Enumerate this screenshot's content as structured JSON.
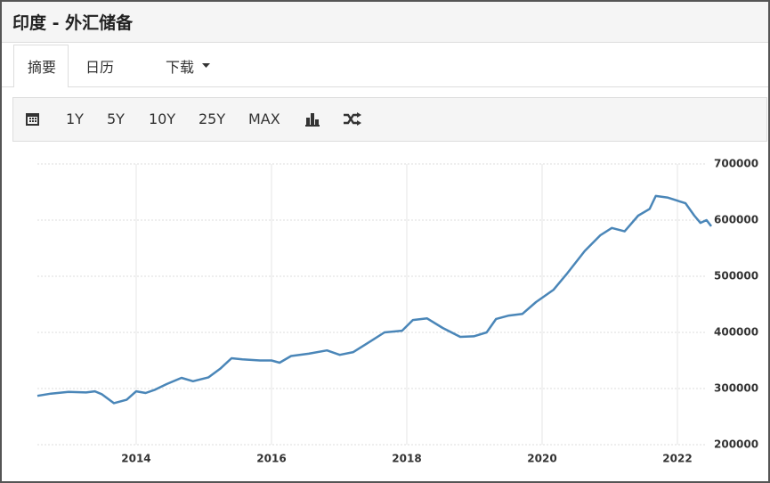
{
  "header": {
    "title": "印度 - 外汇储备"
  },
  "tabs": [
    "摘要",
    "日历",
    "下载"
  ],
  "toolbar": {
    "ranges": [
      "1Y",
      "5Y",
      "10Y",
      "25Y",
      "MAX"
    ]
  },
  "chart_data": {
    "type": "line",
    "x": [
      2012.54,
      2012.74,
      2013.0,
      2013.26,
      2013.39,
      2013.49,
      2013.67,
      2013.86,
      2014.0,
      2014.14,
      2014.28,
      2014.45,
      2014.67,
      2014.84,
      2015.07,
      2015.24,
      2015.41,
      2015.57,
      2015.83,
      2016.0,
      2016.12,
      2016.29,
      2016.55,
      2016.82,
      2017.01,
      2017.21,
      2017.41,
      2017.67,
      2017.93,
      2018.09,
      2018.3,
      2018.53,
      2018.79,
      2018.99,
      2019.18,
      2019.32,
      2019.51,
      2019.71,
      2019.91,
      2020.17,
      2020.37,
      2020.63,
      2020.86,
      2021.03,
      2021.22,
      2021.42,
      2021.59,
      2021.68,
      2021.86,
      2022.12,
      2022.25,
      2022.34,
      2022.43,
      2022.5
    ],
    "series": [
      {
        "color": "#4a86b8",
        "values": [
          287000,
          291000,
          294000,
          293000,
          295000,
          290000,
          274000,
          280000,
          295000,
          292000,
          298000,
          308000,
          319000,
          313000,
          320000,
          335000,
          354000,
          352000,
          350000,
          350000,
          346000,
          358000,
          362000,
          368000,
          360000,
          365000,
          380000,
          400000,
          403000,
          422000,
          425000,
          408000,
          392000,
          393000,
          400000,
          424000,
          430000,
          433000,
          454000,
          476000,
          505000,
          545000,
          573000,
          586000,
          580000,
          608000,
          620000,
          643000,
          640000,
          630000,
          608000,
          595000,
          600000,
          589000
        ]
      }
    ],
    "xlim": [
      2012.54,
      2022.5
    ],
    "ylim": [
      200000,
      700000
    ],
    "xticks": [
      2014,
      2016,
      2018,
      2020,
      2022
    ],
    "yticks": [
      200000,
      300000,
      400000,
      500000,
      600000,
      700000
    ],
    "grid": true
  }
}
